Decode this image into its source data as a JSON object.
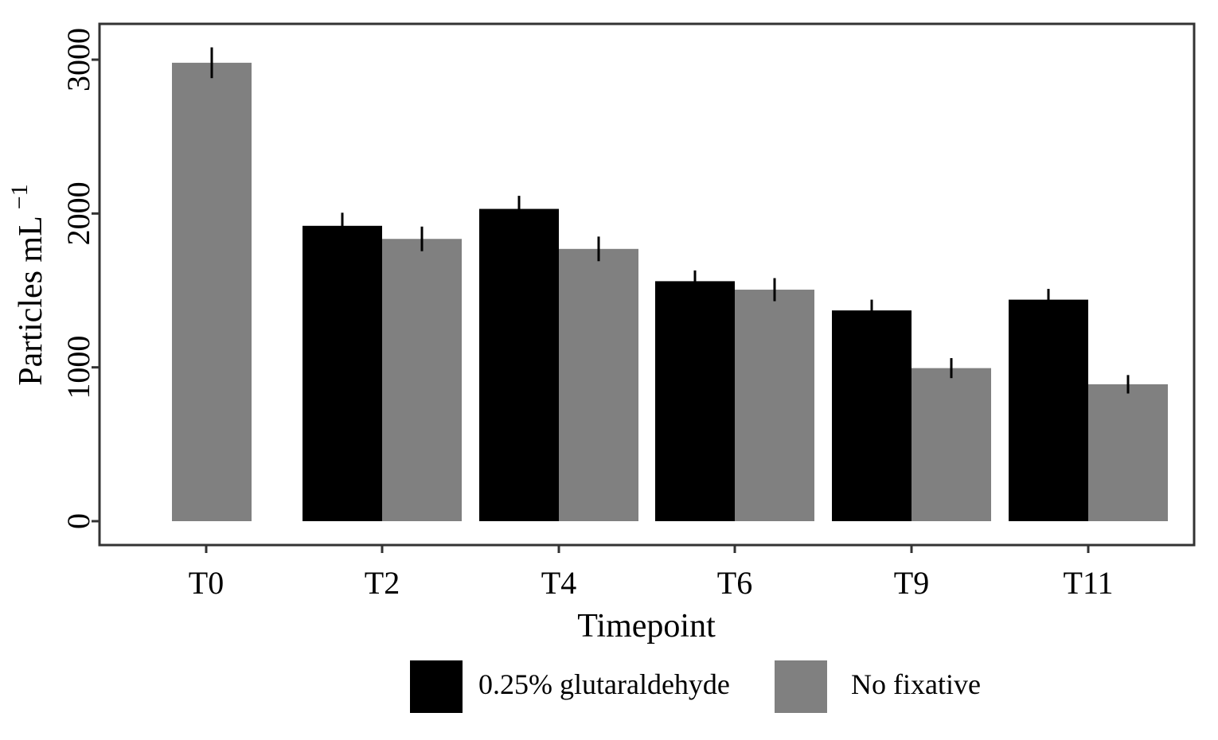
{
  "chart_data": {
    "type": "bar",
    "title": "",
    "xlabel": "Timepoint",
    "ylabel": "Particles mL",
    "ylabel_superscript": "−1",
    "categories": [
      "T0",
      "T2",
      "T4",
      "T6",
      "T9",
      "T11"
    ],
    "ylim": [
      0,
      3150
    ],
    "yticks": [
      0,
      1000,
      2000,
      3000
    ],
    "grid": false,
    "legend_position": "bottom",
    "series": [
      {
        "name": "0.25% glutaraldehyde",
        "color": "#000000",
        "values": [
          null,
          1920,
          2030,
          1560,
          1370,
          1440
        ],
        "error": [
          null,
          85,
          85,
          70,
          70,
          70
        ]
      },
      {
        "name": "No fixative",
        "color": "#808080",
        "values": [
          2980,
          1835,
          1770,
          1505,
          995,
          890
        ],
        "error": [
          100,
          80,
          80,
          75,
          65,
          60
        ]
      }
    ]
  }
}
